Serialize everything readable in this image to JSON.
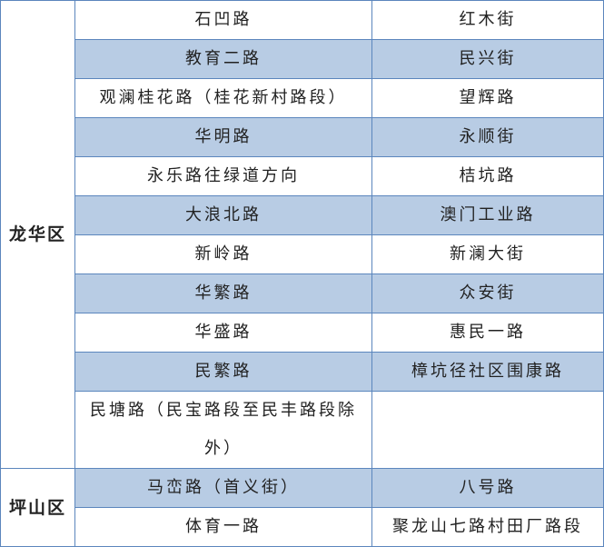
{
  "colors": {
    "shaded_row": "#b8cce4",
    "border": "#5b86bd"
  },
  "groups": [
    {
      "district": "龙华区",
      "rows": [
        {
          "left": "石凹路",
          "right": "红木街",
          "shaded": false
        },
        {
          "left": "教育二路",
          "right": "民兴街",
          "shaded": true
        },
        {
          "left": "观澜桂花路（桂花新村路段）",
          "right": "望辉路",
          "shaded": false
        },
        {
          "left": "华明路",
          "right": "永顺街",
          "shaded": true
        },
        {
          "left": "永乐路往绿道方向",
          "right": "桔坑路",
          "shaded": false
        },
        {
          "left": "大浪北路",
          "right": "澳门工业路",
          "shaded": true
        },
        {
          "left": "新岭路",
          "right": "新澜大街",
          "shaded": false
        },
        {
          "left": "华繁路",
          "right": "众安街",
          "shaded": true
        },
        {
          "left": "华盛路",
          "right": "惠民一路",
          "shaded": false
        },
        {
          "left": "民繁路",
          "right": "樟坑径社区围康路",
          "shaded": true
        },
        {
          "left": "民塘路（民宝路段至民丰路段除外）",
          "right": "",
          "shaded": false
        }
      ]
    },
    {
      "district": "坪山区",
      "rows": [
        {
          "left": "马峦路（首义街）",
          "right": "八号路",
          "shaded": true
        },
        {
          "left": "体育一路",
          "right": "聚龙山七路村田厂路段",
          "shaded": false
        }
      ]
    }
  ]
}
